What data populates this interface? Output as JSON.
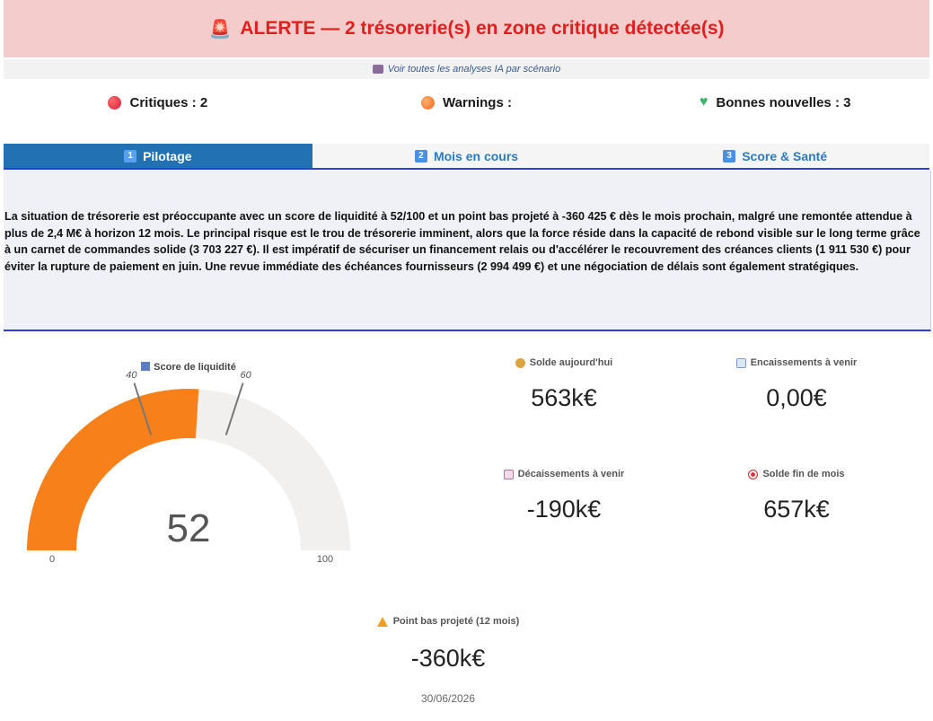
{
  "alert": {
    "text": "ALERTE — 2 trésorerie(s) en zone critique détectée(s)"
  },
  "scenario_link": {
    "text": "Voir toutes les analyses IA par scénario"
  },
  "counters": {
    "critiques": "Critiques : 2",
    "warnings": "Warnings :",
    "bonnes": "Bonnes nouvelles : 3"
  },
  "tabs": [
    {
      "num": "1",
      "label": "Pilotage"
    },
    {
      "num": "2",
      "label": "Mois en cours"
    },
    {
      "num": "3",
      "label": "Score & Santé"
    }
  ],
  "summary": "La situation de trésorerie est préoccupante avec un score de liquidité à 52/100 et un point bas projeté à -360 425 € dès le mois prochain, malgré une remontée attendue à plus de 2,4 M€ à horizon 12 mois. Le principal risque est le trou de trésorerie imminent, alors que la force réside dans la capacité de rebond visible sur le long terme grâce à un carnet de commandes solide (3 703 227 €). Il est impératif de sécuriser un financement relais ou d'accélérer le recouvrement des créances clients (1 911 530 €) pour éviter la rupture de paiement en juin. Une revue immédiate des échéances fournisseurs (2 994 499 €) et une négociation de délais sont également stratégiques.",
  "gauge": {
    "title": "Score de liquidité",
    "value": 52,
    "display_value": "52",
    "min": 0,
    "max": 100,
    "min_label": "0",
    "max_label": "100",
    "thresholds": [
      40,
      60
    ],
    "threshold_labels": [
      "40",
      "60"
    ],
    "fill_color": "#f7801a",
    "track_color": "#f1f0ef"
  },
  "metrics": {
    "solde_aujourdhui": {
      "label": "Solde aujourd'hui",
      "value": "563k€"
    },
    "encaissements": {
      "label": "Encaissements à venir",
      "value": "0,00€"
    },
    "decaissements": {
      "label": "Décaissements à venir",
      "value": "-190k€"
    },
    "solde_fin_mois": {
      "label": "Solde fin de mois",
      "value": "657k€"
    }
  },
  "point_bas": {
    "label": "Point bas projeté (12 mois)",
    "value": "-360k€",
    "date": "30/06/2026"
  },
  "colors": {
    "alert_bg": "#f4cccc",
    "alert_text": "#e0201f",
    "tab_active": "#2271b3",
    "tab_border": "#2b3fd6"
  }
}
